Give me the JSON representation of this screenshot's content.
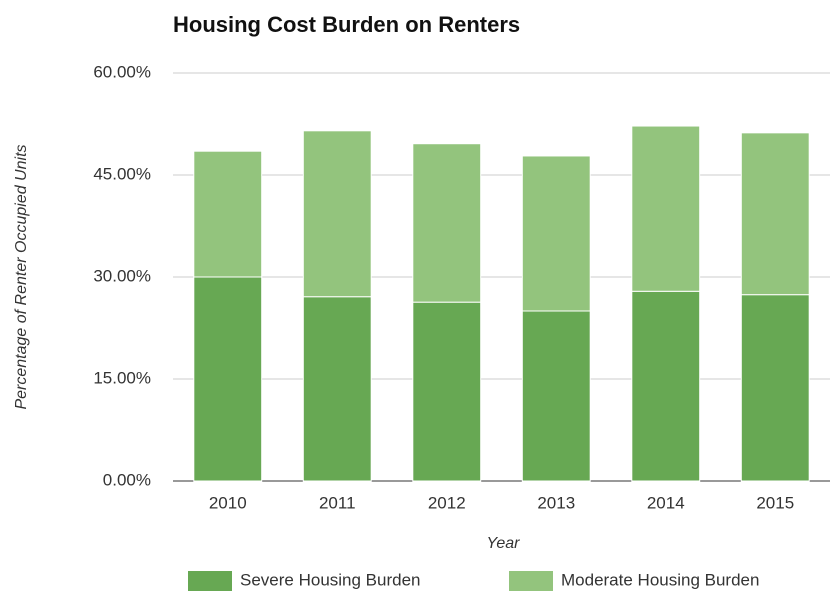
{
  "chart_data": {
    "type": "bar",
    "stacked": true,
    "title": "Housing Cost Burden on Renters",
    "x_label": "Year",
    "y_label": "Percentage of Renter Occupied Units",
    "categories": [
      "2010",
      "2011",
      "2012",
      "2013",
      "2014",
      "2015"
    ],
    "series": [
      {
        "name": "Severe Housing Burden",
        "color": "#67a853",
        "values": [
          30.0,
          27.1,
          26.3,
          25.0,
          27.9,
          27.4
        ]
      },
      {
        "name": "Moderate Housing Burden",
        "color": "#93c47d",
        "values": [
          18.5,
          24.4,
          23.3,
          22.8,
          24.3,
          23.8
        ]
      }
    ],
    "ylim": [
      0,
      60
    ],
    "yticks": [
      {
        "value": 0,
        "label": "0.00%"
      },
      {
        "value": 15,
        "label": "15.00%"
      },
      {
        "value": 30,
        "label": "30.00%"
      },
      {
        "value": 45,
        "label": "45.00%"
      },
      {
        "value": 60,
        "label": "60.00%"
      }
    ],
    "grid": true,
    "legend": "bottom"
  }
}
